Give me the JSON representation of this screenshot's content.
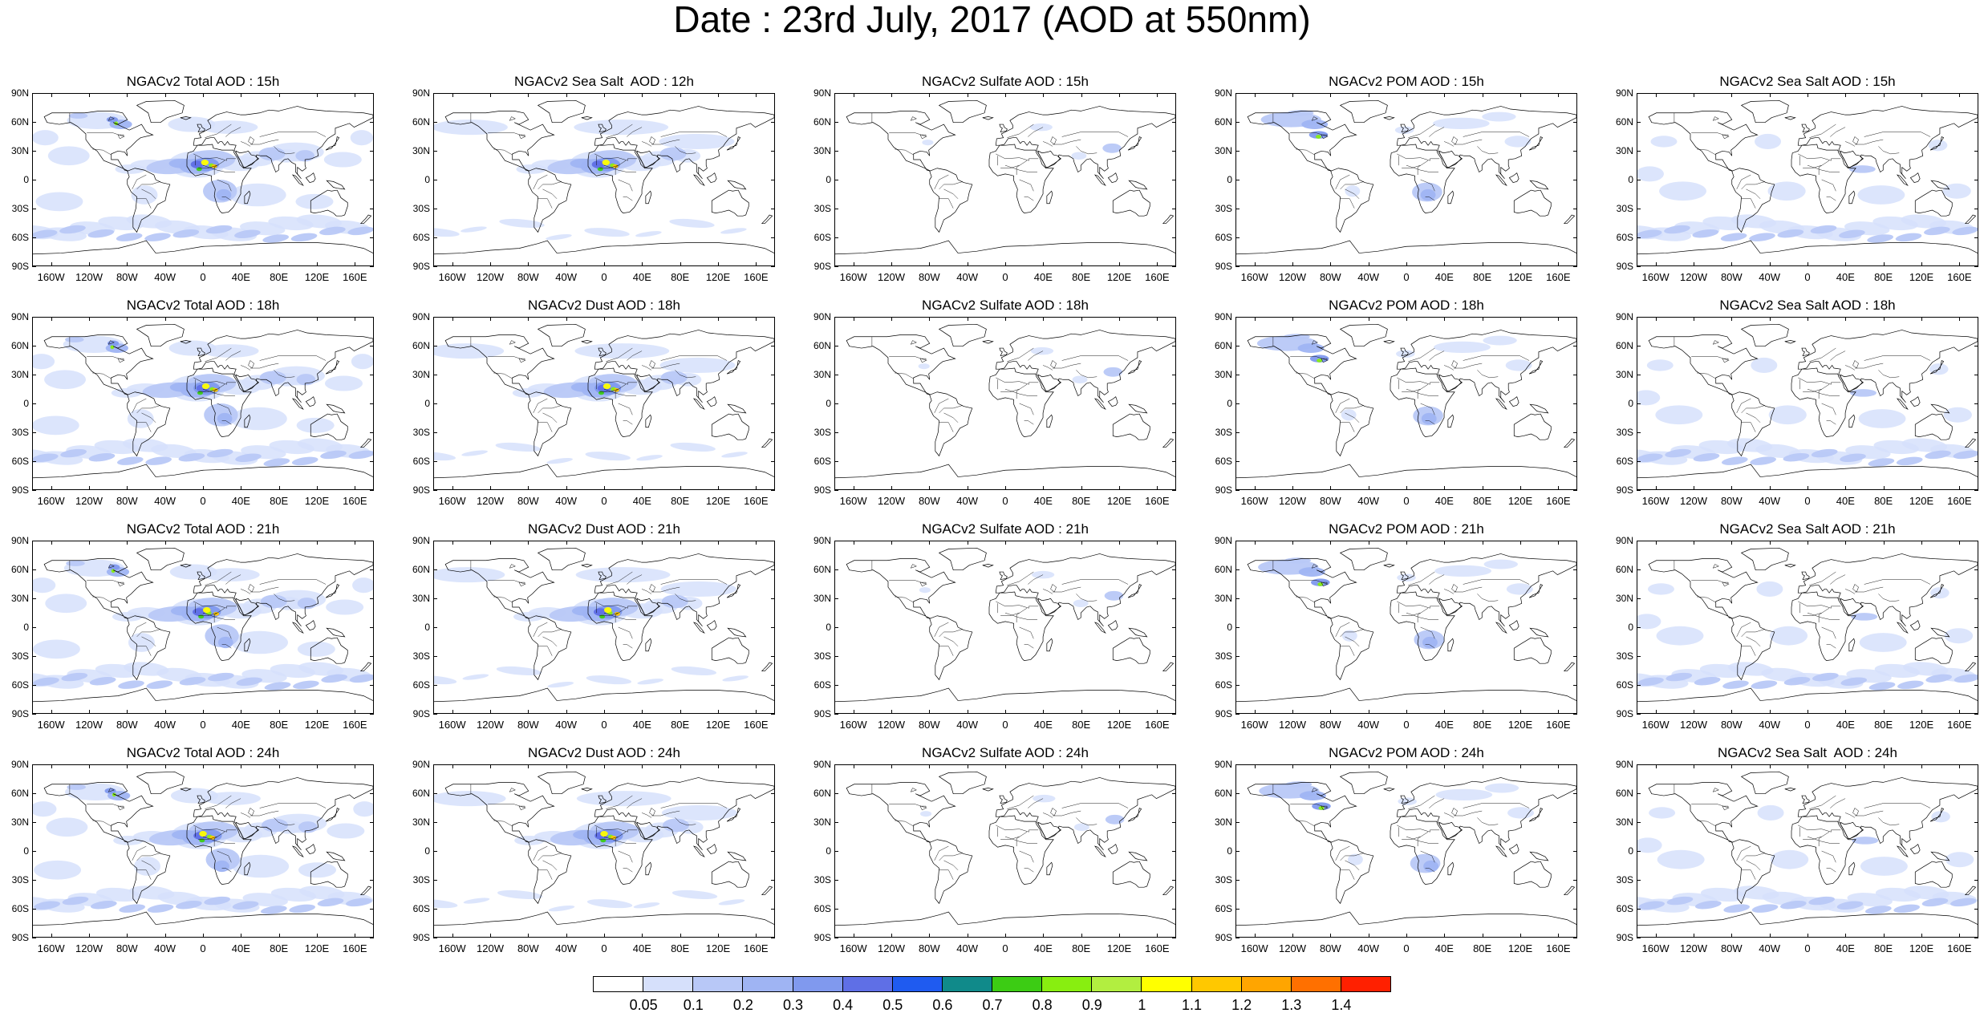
{
  "title": "Date : 23rd July, 2017 (AOD at 550nm)",
  "panels": [
    [
      "NGACv2 Total AOD : 15h",
      "NGACv2 Sea Salt  AOD : 12h",
      "NGACv2 Sulfate AOD : 15h",
      "NGACv2 POM AOD : 15h",
      "NGACv2 Sea Salt AOD : 15h"
    ],
    [
      "NGACv2 Total AOD : 18h",
      "NGACv2 Dust AOD : 18h",
      "NGACv2 Sulfate AOD : 18h",
      "NGACv2 POM AOD : 18h",
      "NGACv2 Sea Salt AOD : 18h"
    ],
    [
      "NGACv2 Total AOD : 21h",
      "NGACv2 Dust AOD : 21h",
      "NGACv2 Sulfate AOD : 21h",
      "NGACv2 POM AOD : 21h",
      "NGACv2 Sea Salt AOD : 21h"
    ],
    [
      "NGACv2 Total AOD : 24h",
      "NGACv2 Dust AOD : 24h",
      "NGACv2 Sulfate AOD : 24h",
      "NGACv2 POM AOD : 24h",
      "NGACv2 Sea Salt  AOD : 24h"
    ]
  ],
  "lat_labels": [
    "90N",
    "60N",
    "30N",
    "0",
    "30S",
    "60S",
    "90S"
  ],
  "lon_labels": [
    "160W",
    "120W",
    "80W",
    "40W",
    "0",
    "40E",
    "80E",
    "120E",
    "160E"
  ],
  "colorbar": {
    "labels": [
      "0.05",
      "0.1",
      "0.2",
      "0.3",
      "0.4",
      "0.5",
      "0.6",
      "0.7",
      "0.8",
      "0.9",
      "1",
      "1.1",
      "1.2",
      "1.3",
      "1.4"
    ],
    "colors": [
      "#ffffff",
      "#d6e0fb",
      "#b8c8f7",
      "#9fb4f3",
      "#8099ee",
      "#5f6fe6",
      "#1f5bf0",
      "#108a8a",
      "#3ccc14",
      "#88ee10",
      "#b2ee40",
      "#ffff00",
      "#ffc800",
      "#ffa500",
      "#ff7000",
      "#ff2000"
    ]
  },
  "colors": {
    "land_outline": "#000000",
    "aod_low": "#d6e0fb",
    "aod_mid": "#9fb4f3",
    "aod_high": "#5f6fe6",
    "aod_peak": "#ffff00"
  }
}
